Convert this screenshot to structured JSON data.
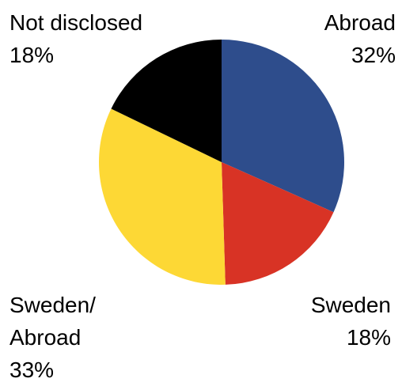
{
  "chart_data": {
    "type": "pie",
    "categories": [
      "Abroad",
      "Sweden",
      "Sweden/ Abroad",
      "Not disclosed"
    ],
    "values": [
      32,
      18,
      33,
      18
    ],
    "value_labels": [
      "32%",
      "18%",
      "33%",
      "18%"
    ],
    "colors": [
      "#2e4d8c",
      "#d83325",
      "#fdd835",
      "#000000"
    ]
  }
}
